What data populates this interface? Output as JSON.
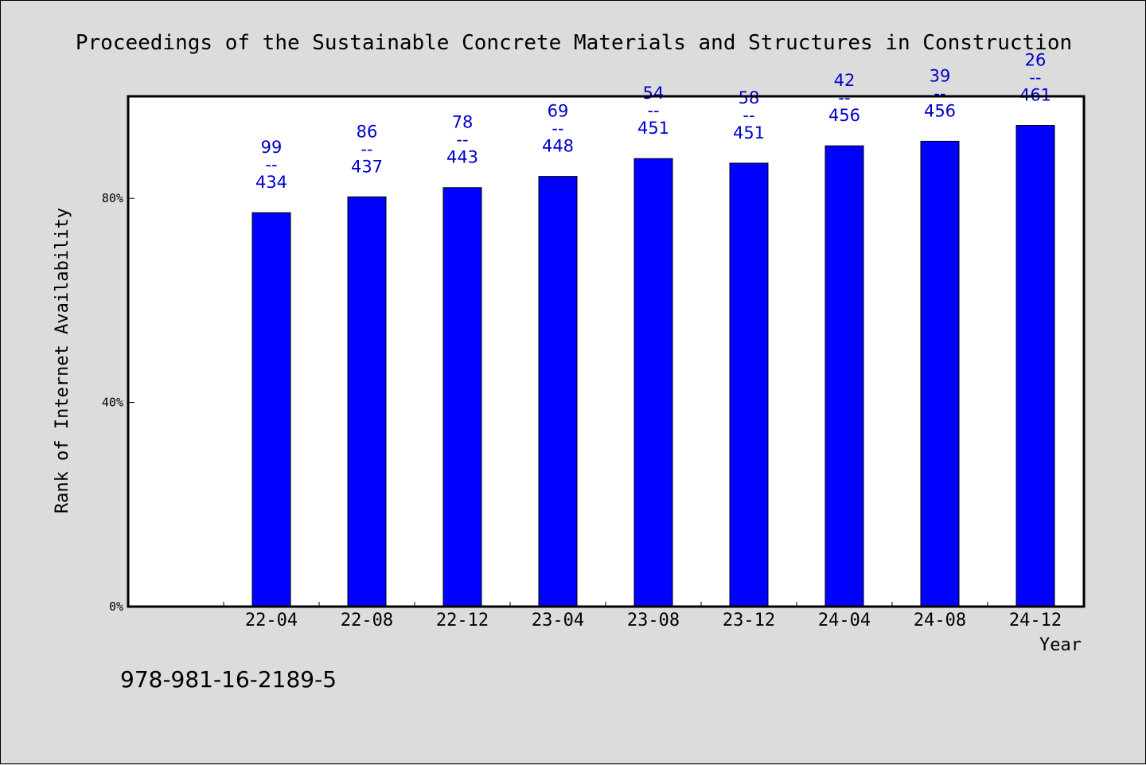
{
  "colors": {
    "background": "#dcdcdc",
    "plot_background": "#ffffff",
    "bar": "#0000ff",
    "label": "#0000cd",
    "axis": "#000000"
  },
  "footer": {
    "isbn": "978-981-16-2189-5"
  },
  "chart_data": {
    "type": "bar",
    "title": "Proceedings of the Sustainable Concrete Materials and Structures in Construction",
    "xlabel": "Year",
    "ylabel": "Rank of Internet Availability",
    "ylim": [
      0,
      100
    ],
    "y_ticks": [
      0,
      40,
      80
    ],
    "y_tick_labels": [
      "0%",
      "40%",
      "80%"
    ],
    "categories": [
      "22-04",
      "22-08",
      "22-12",
      "23-04",
      "23-08",
      "23-12",
      "24-04",
      "24-08",
      "24-12"
    ],
    "values": [
      77.2,
      80.3,
      82.1,
      84.3,
      87.8,
      86.9,
      90.3,
      91.2,
      94.3
    ],
    "rank": [
      99,
      86,
      78,
      69,
      54,
      58,
      42,
      39,
      26
    ],
    "total": [
      434,
      437,
      443,
      448,
      451,
      451,
      456,
      456,
      461
    ],
    "label_separator": "--",
    "grid": false,
    "legend": false
  }
}
